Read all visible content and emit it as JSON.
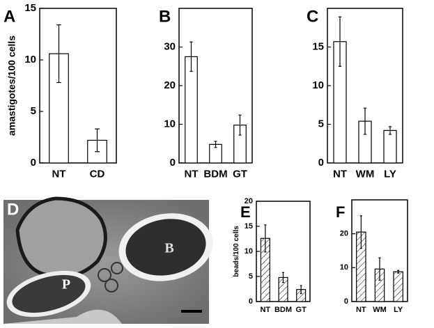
{
  "chart_data": [
    {
      "type": "bar",
      "panel": "A",
      "y_label": "amastigotes/100 cells",
      "categories": [
        "NT",
        "CD"
      ],
      "values": [
        10.6,
        2.2
      ],
      "errors": [
        2.8,
        1.1
      ],
      "ylim": [
        0,
        15
      ],
      "yticks": [
        0,
        5,
        10,
        15
      ],
      "hatch": false
    },
    {
      "type": "bar",
      "panel": "B",
      "categories": [
        "NT",
        "BDM",
        "GT"
      ],
      "values": [
        27.5,
        4.8,
        9.8
      ],
      "errors": [
        3.8,
        0.8,
        2.6
      ],
      "ylim": [
        0,
        40
      ],
      "yticks": [
        0,
        10,
        20,
        30
      ],
      "hatch": false
    },
    {
      "type": "bar",
      "panel": "C",
      "categories": [
        "NT",
        "WM",
        "LY"
      ],
      "values": [
        15.7,
        5.4,
        4.2
      ],
      "errors": [
        3.2,
        1.7,
        0.5
      ],
      "ylim": [
        0,
        20
      ],
      "yticks": [
        0,
        5,
        10,
        15
      ],
      "hatch": false
    },
    {
      "type": "bar",
      "panel": "E",
      "y_label": "beads/100 cells",
      "categories": [
        "NT",
        "BDM",
        "GT"
      ],
      "values": [
        12.6,
        4.8,
        2.4
      ],
      "errors": [
        2.7,
        1.0,
        0.8
      ],
      "ylim": [
        0,
        20
      ],
      "yticks": [
        0,
        5,
        10,
        15,
        20
      ],
      "hatch": true
    },
    {
      "type": "bar",
      "panel": "F",
      "categories": [
        "NT",
        "WM",
        "LY"
      ],
      "values": [
        20.5,
        9.6,
        8.8
      ],
      "errors": [
        4.8,
        3.3,
        0.4
      ],
      "ylim": [
        0,
        30
      ],
      "yticks": [
        0,
        10,
        20
      ],
      "hatch": true
    }
  ],
  "image_panel": {
    "panel": "D",
    "annotations": [
      "B",
      "P"
    ]
  }
}
